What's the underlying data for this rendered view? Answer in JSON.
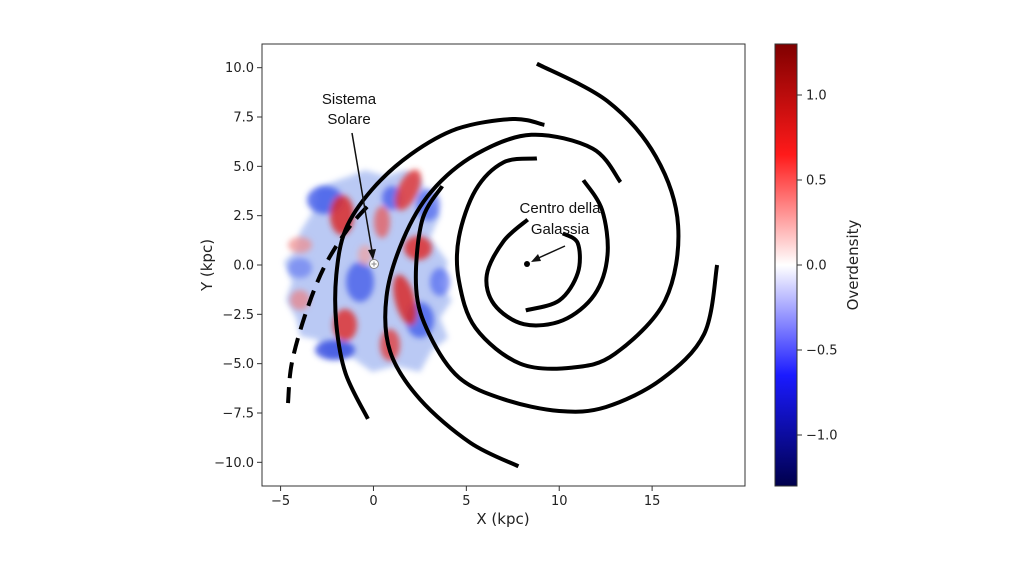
{
  "chart_data": {
    "type": "map",
    "xlabel": "X (kpc)",
    "ylabel": "Y (kpc)",
    "xlim": [
      -6,
      20
    ],
    "ylim": [
      -11.2,
      11.2
    ],
    "x_ticks": [
      -5,
      0,
      5,
      10,
      15
    ],
    "y_ticks": [
      10.0,
      7.5,
      5.0,
      2.5,
      0.0,
      -2.5,
      -5.0,
      -7.5,
      -10.0
    ],
    "colorbar": {
      "label": "Overdensity",
      "range": [
        -1.3,
        1.3
      ],
      "ticks": [
        1.0,
        0.5,
        0.0,
        -0.5,
        -1.0
      ],
      "colormap": "seismic",
      "low_color": "#00004c",
      "mid_color": "#ffffff",
      "high_color": "#800000"
    },
    "annotations": [
      {
        "lines": [
          "Sistema",
          "Solare"
        ],
        "point": [
          0,
          0
        ]
      },
      {
        "lines": [
          "Centro della",
          "Galassia"
        ],
        "point": [
          8.2,
          0
        ]
      }
    ],
    "spiral_arms": [
      {
        "style": "dashed",
        "points": [
          [
            -4.6,
            -7
          ],
          [
            -4.4,
            -5
          ],
          [
            -3.7,
            -2.6
          ],
          [
            -2.7,
            -0.2
          ],
          [
            -1.4,
            1.8
          ],
          [
            -0.1,
            3.2
          ]
        ]
      },
      {
        "style": "solid",
        "points": [
          [
            -0.3,
            -7.8
          ],
          [
            -1.5,
            -5.5
          ],
          [
            -2,
            -3
          ],
          [
            -2,
            -0.5
          ],
          [
            -1.5,
            1.8
          ],
          [
            -0.1,
            3.8
          ],
          [
            2,
            5.6
          ],
          [
            4.5,
            6.9
          ],
          [
            7.5,
            7.4
          ],
          [
            9.2,
            7.1
          ]
        ]
      },
      {
        "style": "solid",
        "points": [
          [
            7.8,
            -10.2
          ],
          [
            5.2,
            -9
          ],
          [
            2.5,
            -6.8
          ],
          [
            0.9,
            -4.4
          ],
          [
            0.7,
            -1.6
          ],
          [
            1.6,
            1.3
          ],
          [
            3.1,
            3.7
          ],
          [
            5.5,
            5.6
          ],
          [
            8.5,
            6.6
          ],
          [
            11.8,
            5.9
          ],
          [
            13.3,
            4.2
          ]
        ]
      },
      {
        "style": "solid",
        "points": [
          [
            8.8,
            10.2
          ],
          [
            12.6,
            8.3
          ],
          [
            15.2,
            5.5
          ],
          [
            16.4,
            2
          ],
          [
            15.7,
            -1.8
          ],
          [
            13,
            -4.5
          ],
          [
            10.7,
            -5.2
          ],
          [
            7.9,
            -5
          ],
          [
            5.5,
            -3.2
          ],
          [
            4.6,
            -0.8
          ],
          [
            4.6,
            1.4
          ],
          [
            5.5,
            3.8
          ],
          [
            7,
            5.2
          ],
          [
            8.8,
            5.4
          ]
        ]
      },
      {
        "style": "solid",
        "points": [
          [
            8.3,
            2.3
          ],
          [
            7,
            1.2
          ],
          [
            6.1,
            -0.5
          ],
          [
            6.5,
            -2
          ],
          [
            8.1,
            -3
          ],
          [
            10.2,
            -2.8
          ],
          [
            11.9,
            -1.5
          ],
          [
            12.6,
            0.5
          ],
          [
            12.3,
            2.8
          ],
          [
            11.3,
            4.3
          ]
        ]
      },
      {
        "style": "solid",
        "points": [
          [
            8.2,
            -2.3
          ],
          [
            10,
            -1.8
          ],
          [
            11,
            -0.4
          ],
          [
            11,
            1.1
          ],
          [
            10.2,
            1.6
          ]
        ]
      },
      {
        "style": "solid",
        "points": [
          [
            18.5,
            0
          ],
          [
            17.8,
            -3.5
          ],
          [
            15.5,
            -5.8
          ],
          [
            12.5,
            -7.2
          ],
          [
            10,
            -7.4
          ],
          [
            7,
            -6.8
          ],
          [
            4.6,
            -5.7
          ],
          [
            3,
            -3.5
          ],
          [
            2.3,
            -1.2
          ],
          [
            2.6,
            2.2
          ],
          [
            3.7,
            4
          ]
        ]
      }
    ]
  }
}
